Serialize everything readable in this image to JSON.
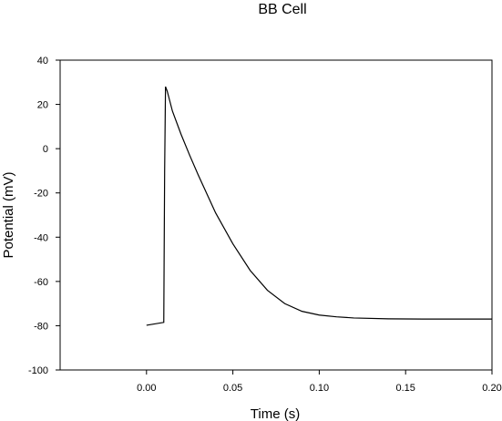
{
  "chart_data": {
    "type": "line",
    "title": "BB Cell",
    "xlabel": "Time (s)",
    "ylabel": "Potential (mV)",
    "xlim": [
      -0.05,
      0.2
    ],
    "ylim": [
      -100,
      40
    ],
    "x_ticks": [
      0.0,
      0.05,
      0.1,
      0.15,
      0.2
    ],
    "x_tick_labels": [
      "0.00",
      "0.05",
      "0.10",
      "0.15",
      "0.20"
    ],
    "y_ticks": [
      -100,
      -80,
      -60,
      -40,
      -20,
      0,
      20,
      40
    ],
    "y_tick_labels": [
      "-100",
      "-80",
      "-60",
      "-40",
      "-20",
      "0",
      "20",
      "40"
    ],
    "grid": false,
    "legend": "none",
    "line_color": "#000000",
    "series": [
      {
        "x": [
          0.0,
          0.01,
          0.0102,
          0.0105,
          0.011,
          0.012,
          0.015,
          0.02,
          0.025,
          0.03,
          0.04,
          0.05,
          0.06,
          0.07,
          0.08,
          0.09,
          0.1,
          0.11,
          0.12,
          0.14,
          0.16,
          0.18,
          0.2
        ],
        "y": [
          -79.8,
          -78.5,
          -50.0,
          -10.0,
          28.0,
          26.0,
          17.0,
          6.5,
          -3.0,
          -12.0,
          -29.0,
          -43.0,
          -55.0,
          -64.0,
          -70.0,
          -73.5,
          -75.2,
          -76.0,
          -76.5,
          -76.9,
          -77.0,
          -77.0,
          -77.0
        ]
      }
    ]
  }
}
